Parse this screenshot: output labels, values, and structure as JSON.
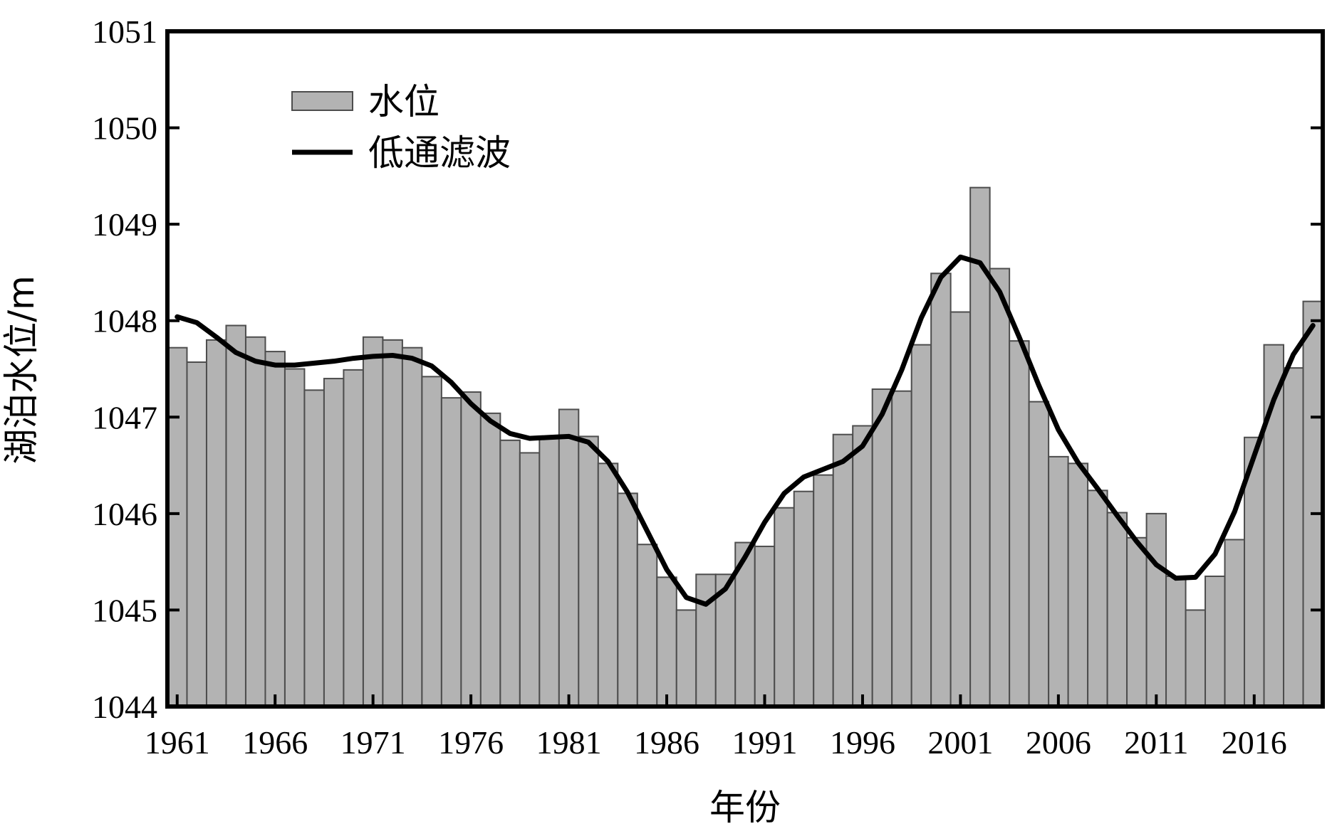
{
  "chart_data": {
    "type": "bar",
    "xlabel": "年份",
    "ylabel": "湖泊水位/m",
    "ylim": [
      1044,
      1051
    ],
    "yticks": [
      1044,
      1045,
      1046,
      1047,
      1048,
      1049,
      1050,
      1051
    ],
    "xticks": [
      "1961",
      "1966",
      "1971",
      "1976",
      "1981",
      "1986",
      "1991",
      "1996",
      "2001",
      "2006",
      "2011",
      "2016"
    ],
    "grid": false,
    "legend_position": "top-left",
    "colors": {
      "bar_fill": "#b3b3b3",
      "bar_edge": "#4d4d4d",
      "line": "#000000",
      "frame": "#000000"
    },
    "years": [
      1961,
      1962,
      1963,
      1964,
      1965,
      1966,
      1967,
      1968,
      1969,
      1970,
      1971,
      1972,
      1973,
      1974,
      1975,
      1976,
      1977,
      1978,
      1979,
      1980,
      1981,
      1982,
      1983,
      1984,
      1985,
      1986,
      1987,
      1988,
      1989,
      1990,
      1991,
      1992,
      1993,
      1994,
      1995,
      1996,
      1997,
      1998,
      1999,
      2000,
      2001,
      2002,
      2003,
      2004,
      2005,
      2006,
      2007,
      2008,
      2009,
      2010,
      2011,
      2012,
      2013,
      2014,
      2015,
      2016,
      2017,
      2018,
      2019
    ],
    "series": [
      {
        "name": "水位",
        "kind": "bar",
        "values": [
          1047.72,
          1047.57,
          1047.8,
          1047.95,
          1047.83,
          1047.68,
          1047.5,
          1047.28,
          1047.4,
          1047.49,
          1047.83,
          1047.8,
          1047.72,
          1047.42,
          1047.2,
          1047.26,
          1047.04,
          1046.76,
          1046.63,
          1046.79,
          1047.08,
          1046.8,
          1046.52,
          1046.21,
          1045.68,
          1045.34,
          1045.0,
          1045.37,
          1045.37,
          1045.7,
          1045.66,
          1046.06,
          1046.23,
          1046.4,
          1046.82,
          1046.91,
          1047.29,
          1047.27,
          1047.75,
          1048.49,
          1048.09,
          1049.38,
          1048.54,
          1047.79,
          1047.16,
          1046.59,
          1046.52,
          1046.24,
          1046.01,
          1045.75,
          1046.0,
          1045.35,
          1045.0,
          1045.35,
          1045.73,
          1046.79,
          1047.75,
          1047.51,
          1048.2
        ]
      },
      {
        "name": "低通滤波",
        "kind": "line",
        "values": [
          1048.04,
          1047.98,
          1047.83,
          1047.67,
          1047.58,
          1047.54,
          1047.54,
          1047.56,
          1047.58,
          1047.61,
          1047.63,
          1047.64,
          1047.61,
          1047.53,
          1047.36,
          1047.14,
          1046.96,
          1046.83,
          1046.78,
          1046.79,
          1046.8,
          1046.74,
          1046.54,
          1046.22,
          1045.82,
          1045.42,
          1045.13,
          1045.06,
          1045.22,
          1045.55,
          1045.91,
          1046.21,
          1046.38,
          1046.46,
          1046.54,
          1046.7,
          1047.03,
          1047.49,
          1048.03,
          1048.45,
          1048.66,
          1048.6,
          1048.3,
          1047.83,
          1047.33,
          1046.87,
          1046.53,
          1046.26,
          1045.98,
          1045.71,
          1045.47,
          1045.33,
          1045.34,
          1045.58,
          1046.02,
          1046.6,
          1047.18,
          1047.65,
          1047.95
        ]
      }
    ]
  }
}
